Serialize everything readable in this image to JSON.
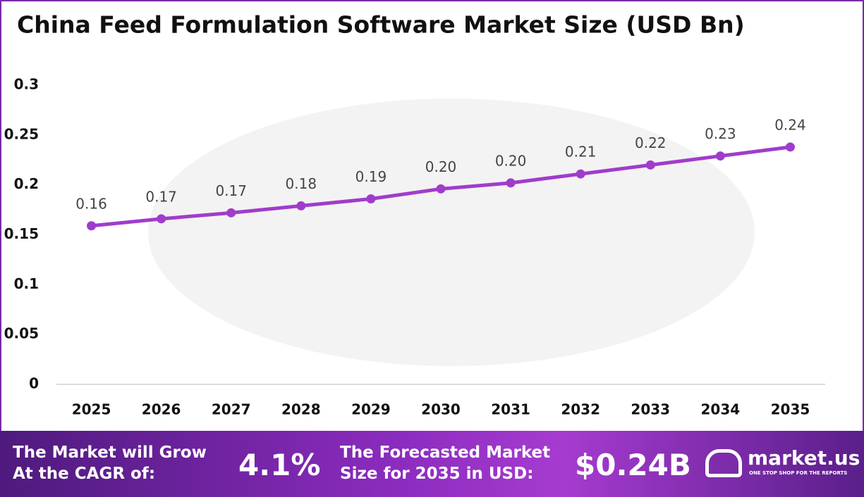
{
  "chart_data": {
    "type": "line",
    "title": "China Feed Formulation Software Market Size (USD Bn)",
    "categories": [
      "2025",
      "2026",
      "2027",
      "2028",
      "2029",
      "2030",
      "2031",
      "2032",
      "2033",
      "2034",
      "2035"
    ],
    "values": [
      0.159,
      0.166,
      0.172,
      0.179,
      0.186,
      0.196,
      0.202,
      0.211,
      0.22,
      0.229,
      0.238
    ],
    "value_labels": [
      "0.16",
      "0.17",
      "0.17",
      "0.18",
      "0.19",
      "0.20",
      "0.20",
      "0.21",
      "0.22",
      "0.23",
      "0.24"
    ],
    "color": "#a03ccb",
    "ylim": [
      0,
      0.3
    ],
    "yticks": [
      0,
      0.05,
      0.1,
      0.15,
      0.2,
      0.25,
      0.3
    ],
    "grid": false
  },
  "footer": {
    "cagr_text": "The Market will Grow At the CAGR of:",
    "cagr_value": "4.1%",
    "forecast_text": "The Forecasted Market Size for 2035 in USD:",
    "forecast_value": "$0.24B",
    "brand": "market.us",
    "tagline": "ONE STOP SHOP FOR THE REPORTS"
  }
}
